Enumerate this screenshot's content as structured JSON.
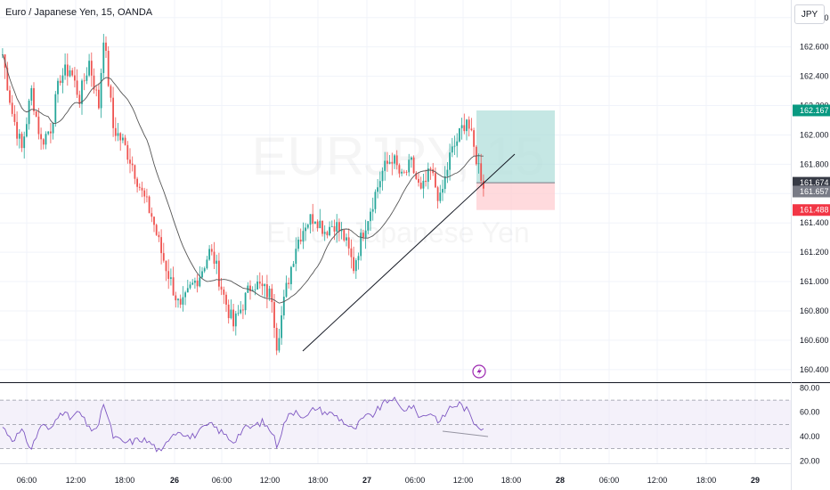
{
  "header": {
    "title": "Euro / Japanese Yen, 15, OANDA",
    "currency": "JPY"
  },
  "watermark": {
    "symbol": "EURJPY, 15",
    "name": "Euro / Japanese Yen"
  },
  "colors": {
    "up": "#26a69a",
    "down": "#ef5350",
    "ma": "#555555",
    "rsi_line": "#7e57c2",
    "rsi_band": "#ede7f6",
    "target_zone": "#b2dfdb",
    "stop_zone": "#ffcdd2",
    "entry_tag": "#787b86",
    "current_tag": "#363a45",
    "target_tag": "#089981",
    "stop_tag": "#f23645"
  },
  "chart_data": [
    {
      "type": "candlestick",
      "x_ticks": [
        "06:00",
        "12:00",
        "18:00",
        "26",
        "06:00",
        "12:00",
        "18:00",
        "27",
        "06:00",
        "12:00",
        "18:00",
        "28",
        "06:00",
        "12:00",
        "18:00",
        "29"
      ],
      "y_ticks": [
        "160.400",
        "160.600",
        "160.800",
        "161.000",
        "161.200",
        "161.400",
        "161.600",
        "161.800",
        "162.000",
        "162.200",
        "162.400",
        "162.600",
        "162.800"
      ],
      "ylim": [
        160.32,
        162.92
      ],
      "series_ma_desc": "moving average",
      "close_anchors": [
        [
          0,
          162.55
        ],
        [
          4,
          162.15
        ],
        [
          8,
          161.9
        ],
        [
          12,
          162.3
        ],
        [
          16,
          161.95
        ],
        [
          20,
          162.05
        ],
        [
          24,
          162.4
        ],
        [
          28,
          162.45
        ],
        [
          32,
          162.25
        ],
        [
          36,
          162.5
        ],
        [
          40,
          162.2
        ],
        [
          42,
          162.68
        ],
        [
          46,
          162.05
        ],
        [
          50,
          161.95
        ],
        [
          54,
          161.8
        ],
        [
          58,
          161.6
        ],
        [
          62,
          161.45
        ],
        [
          66,
          161.2
        ],
        [
          70,
          161.0
        ],
        [
          74,
          160.8
        ],
        [
          78,
          160.95
        ],
        [
          82,
          161.05
        ],
        [
          86,
          161.2
        ],
        [
          88,
          161.15
        ],
        [
          92,
          160.9
        ],
        [
          96,
          160.7
        ],
        [
          100,
          160.85
        ],
        [
          104,
          161.0
        ],
        [
          108,
          160.95
        ],
        [
          112,
          160.9
        ],
        [
          114,
          160.58
        ],
        [
          118,
          160.95
        ],
        [
          122,
          161.25
        ],
        [
          126,
          161.4
        ],
        [
          130,
          161.45
        ],
        [
          134,
          161.35
        ],
        [
          138,
          161.4
        ],
        [
          142,
          161.3
        ],
        [
          146,
          161.1
        ],
        [
          150,
          161.35
        ],
        [
          154,
          161.55
        ],
        [
          158,
          161.75
        ],
        [
          162,
          161.85
        ],
        [
          166,
          161.7
        ],
        [
          170,
          161.8
        ],
        [
          174,
          161.6
        ],
        [
          178,
          161.75
        ],
        [
          182,
          161.55
        ],
        [
          186,
          161.85
        ],
        [
          190,
          162.0
        ],
        [
          193,
          162.12
        ],
        [
          196,
          161.9
        ],
        [
          200,
          161.67
        ]
      ],
      "current_price": "161.674",
      "last_value": "161.657"
    },
    {
      "type": "position",
      "target": "162.167",
      "stop": "161.488",
      "target_value": 162.167,
      "entry_value": 161.674,
      "stop_value": 161.488
    },
    {
      "type": "line",
      "indicator": "RSI",
      "y_ticks": [
        "20.00",
        "40.00",
        "60.00",
        "80.00"
      ],
      "ylim": [
        18,
        84
      ],
      "bands": [
        30,
        70
      ],
      "mid": 50,
      "anchors": [
        [
          0,
          48
        ],
        [
          4,
          38
        ],
        [
          8,
          44
        ],
        [
          12,
          30
        ],
        [
          16,
          50
        ],
        [
          20,
          45
        ],
        [
          24,
          62
        ],
        [
          28,
          55
        ],
        [
          32,
          60
        ],
        [
          36,
          46
        ],
        [
          40,
          48
        ],
        [
          42,
          68
        ],
        [
          46,
          40
        ],
        [
          50,
          35
        ],
        [
          54,
          36
        ],
        [
          58,
          38
        ],
        [
          62,
          34
        ],
        [
          66,
          26
        ],
        [
          70,
          42
        ],
        [
          74,
          45
        ],
        [
          78,
          39
        ],
        [
          82,
          44
        ],
        [
          86,
          50
        ],
        [
          88,
          48
        ],
        [
          92,
          42
        ],
        [
          96,
          36
        ],
        [
          100,
          46
        ],
        [
          104,
          48
        ],
        [
          108,
          52
        ],
        [
          112,
          44
        ],
        [
          114,
          33
        ],
        [
          118,
          55
        ],
        [
          122,
          62
        ],
        [
          126,
          55
        ],
        [
          130,
          64
        ],
        [
          134,
          60
        ],
        [
          138,
          58
        ],
        [
          142,
          52
        ],
        [
          146,
          45
        ],
        [
          150,
          55
        ],
        [
          154,
          58
        ],
        [
          158,
          66
        ],
        [
          162,
          72
        ],
        [
          166,
          62
        ],
        [
          170,
          65
        ],
        [
          174,
          56
        ],
        [
          178,
          60
        ],
        [
          182,
          52
        ],
        [
          186,
          64
        ],
        [
          190,
          67
        ],
        [
          193,
          62
        ],
        [
          196,
          52
        ],
        [
          200,
          47
        ]
      ]
    }
  ]
}
